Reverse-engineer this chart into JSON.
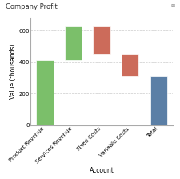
{
  "title": "Company Profit",
  "xlabel": "Account",
  "ylabel": "Value (thousands)",
  "categories": [
    "Product Revenue",
    "Services Revenue",
    "Fixed Costs",
    "Variable Costs",
    "Total"
  ],
  "values": [
    415,
    210,
    -175,
    -135,
    315
  ],
  "total_index": 4,
  "ylim": [
    0,
    680
  ],
  "yticks": [
    0,
    200,
    400,
    600
  ],
  "bar_width": 0.6,
  "color_positive": "#7BBF6A",
  "color_negative": "#CC6B5A",
  "color_total": "#5B7FA6",
  "title_bg": "#D6E4EE",
  "chart_bg": "#FFFFFF",
  "grid_color": "#CCCCCC",
  "title_fontsize": 6,
  "axis_fontsize": 5.5,
  "tick_fontsize": 5
}
